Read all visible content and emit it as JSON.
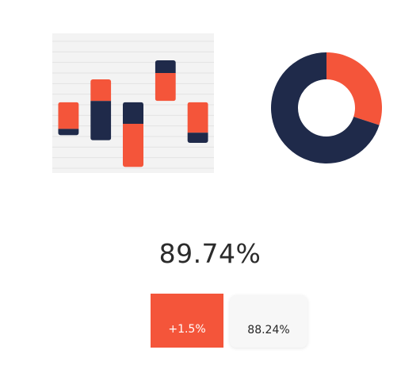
{
  "colors": {
    "accent": "#f4553a",
    "navy": "#1f2a4a",
    "panel": "#f3f3f3",
    "grid": "#e3e3e3"
  },
  "chart_data": [
    {
      "type": "bar",
      "subtype": "floating-stacked",
      "grid": true,
      "ylim": [
        0,
        10
      ],
      "bars": [
        {
          "segments": [
            {
              "from": 3.1,
              "to": 5.2,
              "color": "#f4553a"
            },
            {
              "from": 2.6,
              "to": 3.1,
              "color": "#1f2a4a"
            }
          ]
        },
        {
          "segments": [
            {
              "from": 5.3,
              "to": 7.0,
              "color": "#f4553a"
            },
            {
              "from": 2.2,
              "to": 5.3,
              "color": "#1f2a4a"
            }
          ]
        },
        {
          "segments": [
            {
              "from": 3.5,
              "to": 5.2,
              "color": "#1f2a4a"
            },
            {
              "from": 0.1,
              "to": 3.5,
              "color": "#f4553a"
            }
          ]
        },
        {
          "segments": [
            {
              "from": 7.5,
              "to": 8.5,
              "color": "#1f2a4a"
            },
            {
              "from": 5.3,
              "to": 7.5,
              "color": "#f4553a"
            }
          ]
        },
        {
          "segments": [
            {
              "from": 2.8,
              "to": 5.2,
              "color": "#f4553a"
            },
            {
              "from": 2.0,
              "to": 2.8,
              "color": "#1f2a4a"
            }
          ]
        }
      ]
    },
    {
      "type": "pie",
      "subtype": "donut",
      "slices": [
        {
          "value": 30,
          "color": "#f4553a"
        },
        {
          "value": 70,
          "color": "#1f2a4a"
        }
      ]
    }
  ],
  "stats": {
    "headline": "89.74%",
    "primary_badge": "+1.5%",
    "secondary_badge": "88.24%"
  }
}
